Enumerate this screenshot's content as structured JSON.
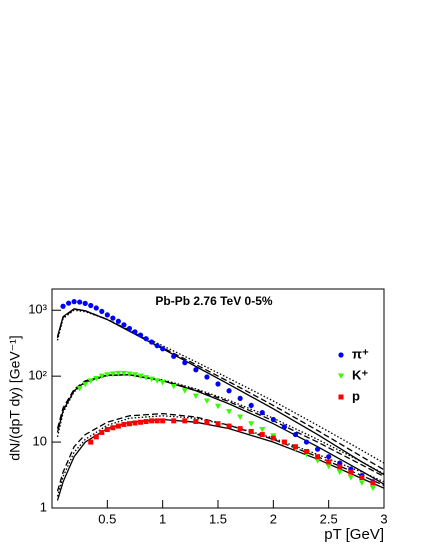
{
  "chart_data": {
    "type": "scatter",
    "annotation": "Pb-Pb   2.76 TeV   0-5%",
    "xlabel": "pT [GeV]",
    "ylabel": "dN/(dpT dy) [GeV⁻¹]",
    "xlim": [
      0,
      3
    ],
    "xticks": [
      0.5,
      1,
      1.5,
      2,
      2.5,
      3
    ],
    "ylim": [
      1,
      2100
    ],
    "yticks": [
      1,
      10,
      {
        "value": 100,
        "label": "10²"
      },
      {
        "value": 1000,
        "label": "10³"
      }
    ],
    "log_y": true,
    "series": [
      {
        "name": "π⁺",
        "color": "#0000ff",
        "marker": "circle",
        "x": [
          0.1,
          0.15,
          0.2,
          0.25,
          0.3,
          0.35,
          0.4,
          0.45,
          0.5,
          0.55,
          0.6,
          0.65,
          0.7,
          0.75,
          0.8,
          0.85,
          0.9,
          0.95,
          1.0,
          1.1,
          1.2,
          1.3,
          1.4,
          1.5,
          1.6,
          1.7,
          1.8,
          1.9,
          2.0,
          2.1,
          2.2,
          2.3,
          2.4,
          2.5,
          2.6,
          2.7,
          2.8,
          2.9
        ],
        "values": [
          1150,
          1280,
          1350,
          1330,
          1270,
          1180,
          1080,
          960,
          850,
          760,
          680,
          600,
          530,
          470,
          420,
          370,
          330,
          290,
          260,
          200,
          160,
          125,
          97,
          76,
          60,
          46,
          36,
          28,
          22,
          17,
          13,
          10,
          7.8,
          6,
          4.8,
          3.9,
          3.1,
          2.5
        ]
      },
      {
        "name": "K⁺",
        "color": "#33ff00",
        "marker": "triangle-down",
        "x": [
          0.25,
          0.3,
          0.35,
          0.4,
          0.45,
          0.5,
          0.55,
          0.6,
          0.65,
          0.7,
          0.75,
          0.8,
          0.85,
          0.9,
          0.95,
          1.0,
          1.1,
          1.2,
          1.3,
          1.4,
          1.5,
          1.6,
          1.7,
          1.8,
          1.9,
          2.0,
          2.1,
          2.2,
          2.3,
          2.4,
          2.5,
          2.6,
          2.7,
          2.8,
          2.9
        ],
        "values": [
          65,
          75,
          85,
          92,
          100,
          105,
          108,
          110,
          110,
          108,
          105,
          100,
          95,
          90,
          85,
          80,
          70,
          60,
          50,
          42,
          35,
          29,
          24,
          19,
          15.5,
          12.5,
          10,
          8,
          6.5,
          5.2,
          4.3,
          3.5,
          2.9,
          2.4,
          2.0
        ]
      },
      {
        "name": "p",
        "color": "#ff0000",
        "marker": "square",
        "x": [
          0.35,
          0.4,
          0.45,
          0.5,
          0.55,
          0.6,
          0.65,
          0.7,
          0.75,
          0.8,
          0.85,
          0.9,
          0.95,
          1.0,
          1.1,
          1.2,
          1.3,
          1.4,
          1.5,
          1.6,
          1.7,
          1.8,
          1.9,
          2.0,
          2.1,
          2.2,
          2.3,
          2.4,
          2.5,
          2.6,
          2.7,
          2.8,
          2.9
        ],
        "values": [
          10,
          12,
          14,
          15.5,
          16.5,
          17.5,
          18.5,
          19,
          19.5,
          20,
          20.5,
          21,
          21,
          21,
          21,
          21,
          20.5,
          20,
          19,
          17.5,
          16,
          14.5,
          13,
          11.5,
          10,
          8.5,
          7.2,
          6,
          5,
          4.2,
          3.5,
          2.9,
          2.4
        ]
      }
    ],
    "curve_x": [
      0.05,
      0.1,
      0.2,
      0.3,
      0.5,
      0.7,
      1.0,
      1.3,
      1.6,
      2.0,
      2.4,
      2.8,
      3.0
    ],
    "curves": [
      {
        "style": "solid",
        "color": "#000000",
        "values": [
          400,
          800,
          1050,
          980,
          720,
          480,
          260,
          140,
          75,
          32,
          13,
          5,
          3.2
        ]
      },
      {
        "style": "dashed",
        "color": "#000000",
        "values": [
          380,
          780,
          1040,
          980,
          725,
          490,
          270,
          150,
          82,
          36,
          15,
          6,
          3.8
        ]
      },
      {
        "style": "dotted",
        "color": "#000000",
        "values": [
          350,
          750,
          1000,
          950,
          730,
          500,
          290,
          165,
          92,
          42,
          18,
          7.5,
          4.8
        ]
      },
      {
        "style": "solid",
        "color": "#000000",
        "values": [
          14,
          30,
          60,
          82,
          103,
          105,
          85,
          60,
          38,
          19,
          8.5,
          3.6,
          2.3
        ]
      },
      {
        "style": "dashed",
        "color": "#000000",
        "values": [
          16,
          33,
          63,
          85,
          104,
          105,
          86,
          62,
          41,
          21,
          10,
          4.5,
          3
        ]
      },
      {
        "style": "dotted",
        "color": "#000000",
        "values": [
          12,
          28,
          58,
          80,
          102,
          106,
          88,
          64,
          43,
          23,
          11,
          5,
          3.3
        ]
      },
      {
        "style": "solid",
        "color": "#000000",
        "values": [
          1.3,
          2.5,
          6,
          10,
          16,
          20,
          22,
          20,
          16,
          10,
          5.5,
          2.8,
          2.0
        ]
      },
      {
        "style": "dashed",
        "color": "#000000",
        "values": [
          1.8,
          3.5,
          8.5,
          13,
          20,
          25,
          27,
          24,
          18,
          11,
          6,
          3.1,
          2.2
        ]
      },
      {
        "style": "dotted",
        "color": "#000000",
        "values": [
          1.5,
          3,
          7,
          11,
          18,
          23,
          25,
          23,
          18,
          11.5,
          6.5,
          3.5,
          2.5
        ]
      }
    ]
  }
}
